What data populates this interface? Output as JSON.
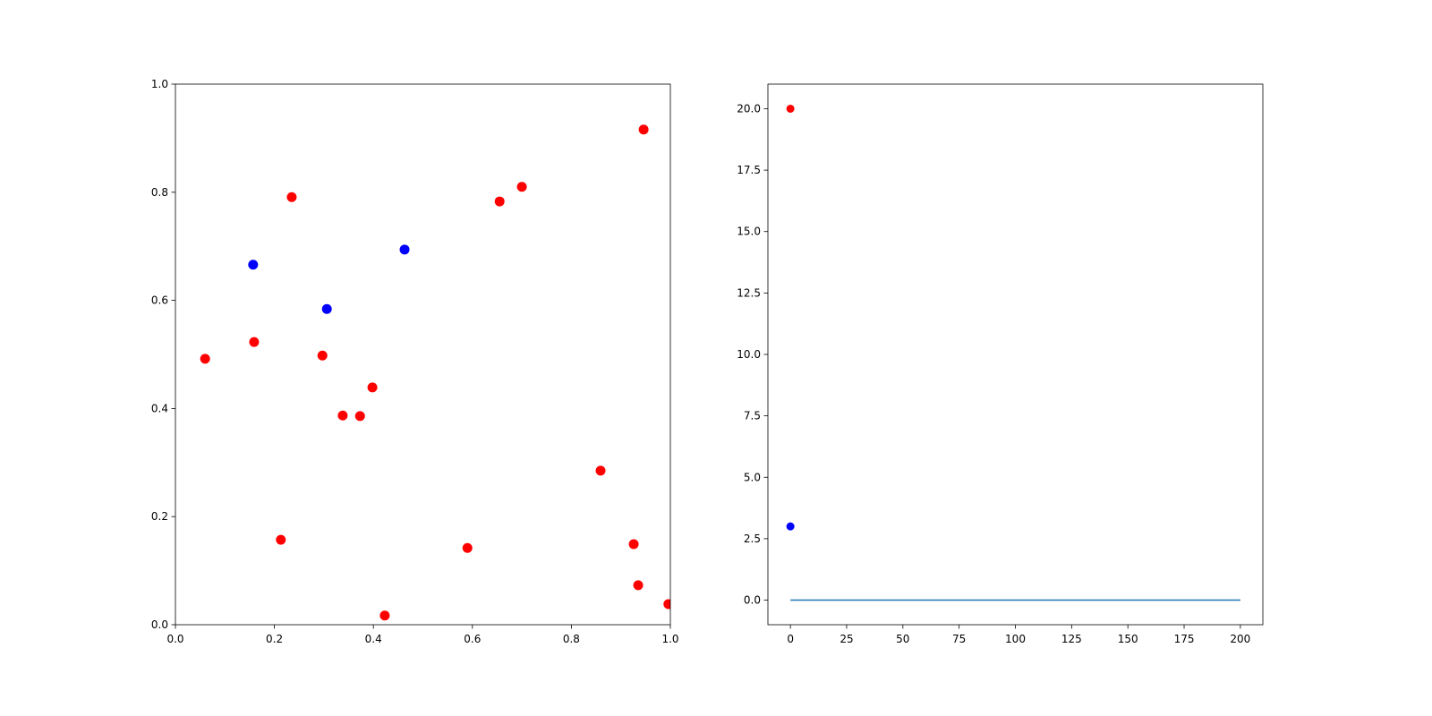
{
  "chart_data": [
    {
      "type": "scatter",
      "xlim": [
        0,
        1
      ],
      "ylim": [
        0,
        1
      ],
      "xticks": [
        {
          "value": 0,
          "label": "0.0"
        },
        0.2,
        0.4,
        0.6,
        0.8,
        {
          "value": 1,
          "label": "1.0"
        }
      ],
      "yticks": [
        {
          "value": 0,
          "label": "0.0"
        },
        0.2,
        0.4,
        0.6,
        0.8,
        {
          "value": 1,
          "label": "1.0"
        }
      ],
      "series": [
        {
          "color": "#ff0000",
          "x": [
            0.06,
            0.235,
            0.159,
            0.297,
            0.338,
            0.373,
            0.398,
            0.213,
            0.423,
            0.59,
            0.655,
            0.7,
            0.859,
            0.946,
            0.926,
            0.935,
            0.996
          ],
          "values": [
            0.492,
            0.791,
            0.523,
            0.498,
            0.387,
            0.386,
            0.439,
            0.157,
            0.017,
            0.142,
            0.783,
            0.81,
            0.285,
            0.916,
            0.149,
            0.073,
            0.038
          ]
        },
        {
          "color": "#0000ff",
          "x": [
            0.157,
            0.306,
            0.463
          ],
          "values": [
            0.666,
            0.584,
            0.694
          ]
        }
      ]
    },
    {
      "type": "line",
      "xlim": [
        -10,
        210
      ],
      "ylim": [
        -1,
        21
      ],
      "xticks": [
        0,
        25,
        50,
        75,
        100,
        125,
        150,
        175,
        200
      ],
      "yticks": [
        {
          "value": 0,
          "label": "0.0"
        },
        2.5,
        {
          "value": 5,
          "label": "5.0"
        },
        7.5,
        {
          "value": 10,
          "label": "10.0"
        },
        12.5,
        {
          "value": 15,
          "label": "15.0"
        },
        17.5,
        {
          "value": 20,
          "label": "20.0"
        }
      ],
      "series": [
        {
          "type": "line",
          "color": "#1f77b4",
          "x": [
            0,
            200
          ],
          "values": [
            0,
            0
          ]
        },
        {
          "type": "scatter",
          "color": "#ff0000",
          "x": [
            0
          ],
          "values": [
            20
          ]
        },
        {
          "type": "scatter",
          "color": "#0000ff",
          "x": [
            0
          ],
          "values": [
            3
          ]
        }
      ]
    }
  ]
}
